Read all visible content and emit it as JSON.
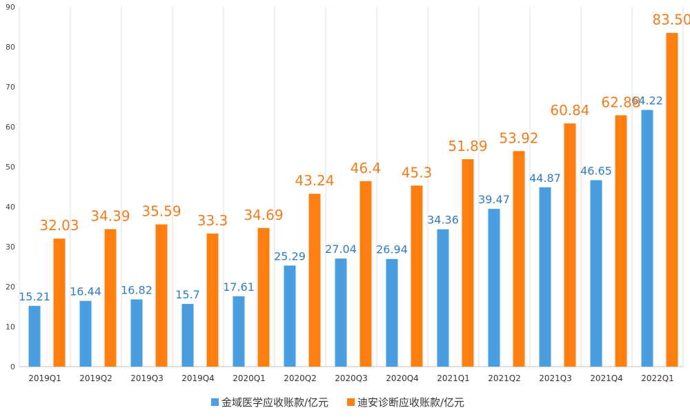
{
  "chart_data": {
    "type": "bar",
    "categories": [
      "2019Q1",
      "2019Q2",
      "2019Q3",
      "2019Q4",
      "2020Q1",
      "2020Q2",
      "2020Q3",
      "2020Q4",
      "2021Q1",
      "2021Q2",
      "2021Q3",
      "2021Q4",
      "2022Q1"
    ],
    "series": [
      {
        "name": "金域医学应收账款/亿元",
        "color": "#4a9ee0",
        "values": [
          15.21,
          16.44,
          16.82,
          15.7,
          17.61,
          25.29,
          27.04,
          26.94,
          34.36,
          39.47,
          44.87,
          46.65,
          64.22
        ],
        "labels": [
          "15.21",
          "16.44",
          "16.82",
          "15.7",
          "17.61",
          "25.29",
          "27.04",
          "26.94",
          "34.36",
          "39.47",
          "44.87",
          "46.65",
          "64.22"
        ]
      },
      {
        "name": "迪安诊断应收账款/亿元",
        "color": "#fd7f0f",
        "values": [
          32.03,
          34.39,
          35.59,
          33.3,
          34.69,
          43.24,
          46.4,
          45.3,
          51.89,
          53.92,
          60.84,
          62.88,
          83.5
        ],
        "labels": [
          "32.03",
          "34.39",
          "35.59",
          "33.3",
          "34.69",
          "43.24",
          "46.4",
          "45.3",
          "51.89",
          "53.92",
          "60.84",
          "62.88",
          "83.50"
        ]
      }
    ],
    "ylim": [
      0,
      90
    ],
    "yticks": [
      "0",
      "10",
      "20",
      "30",
      "40",
      "50",
      "60",
      "70",
      "80",
      "90"
    ],
    "grid": "vertical category separators",
    "legend": "bottom-center"
  }
}
